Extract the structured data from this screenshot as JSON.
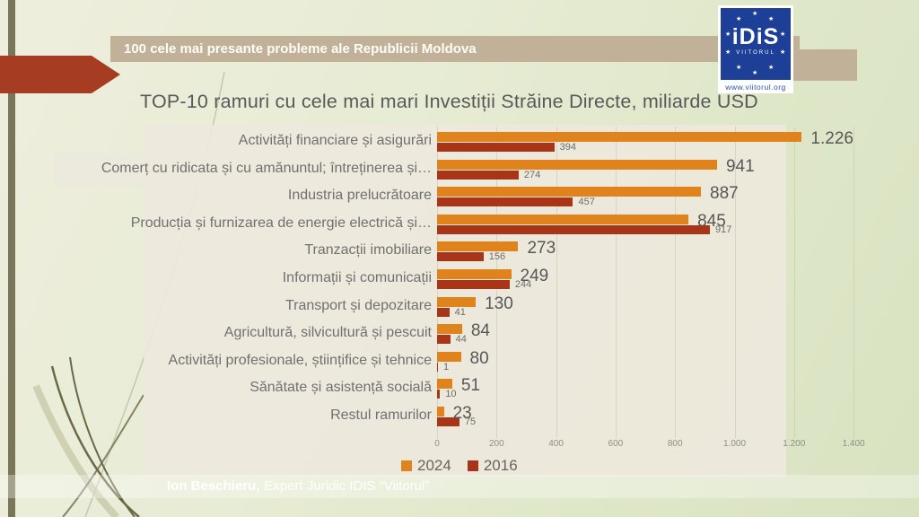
{
  "slide": {
    "banner": "100 cele mai presante probleme ale Republicii Moldova",
    "footer_bold": "Ion Beschieru,",
    "footer_rest": "Expert Juridic IDIS “Viitorul”",
    "logo": {
      "idis": "iDiS",
      "viitorul": "VIITORUL",
      "url": "www.viitorul.org"
    }
  },
  "chart_data": {
    "type": "bar",
    "orientation": "horizontal",
    "title": "TOP-10 ramuri cu cele mai mari Investiții Străine Directe, miliarde USD",
    "categories": [
      "Activități financiare și asigurări",
      "Comerț cu ridicata și cu amănuntul; întreținerea și…",
      "Industria prelucrătoare",
      "Producția și furnizarea de energie electrică și…",
      "Tranzacții imobiliare",
      "Informații și comunicații",
      "Transport și depozitare",
      "Agricultură, silvicultură și pescuit",
      "Activități profesionale, științifice și tehnice",
      "Sănătate și asistență socială",
      "Restul ramurilor"
    ],
    "series": [
      {
        "name": "2024",
        "color": "#e0831d",
        "values": [
          1226,
          941,
          887,
          845,
          273,
          249,
          130,
          84,
          80,
          51,
          23
        ],
        "labels": [
          "1.226",
          "941",
          "887",
          "845",
          "273",
          "249",
          "130",
          "84",
          "80",
          "51",
          "23"
        ]
      },
      {
        "name": "2016",
        "color": "#a83517",
        "values": [
          394,
          274,
          457,
          917,
          156,
          244,
          41,
          44,
          1,
          10,
          75
        ],
        "labels": [
          "394",
          "274",
          "457",
          "917",
          "156",
          "244",
          "41",
          "44",
          "1",
          "10",
          "75"
        ]
      }
    ],
    "x_ticks": [
      "0",
      "200",
      "400",
      "600",
      "800",
      "1.000",
      "1.200",
      "1.400"
    ],
    "xlim": [
      0,
      1400
    ],
    "grid": true,
    "legend_position": "bottom"
  }
}
